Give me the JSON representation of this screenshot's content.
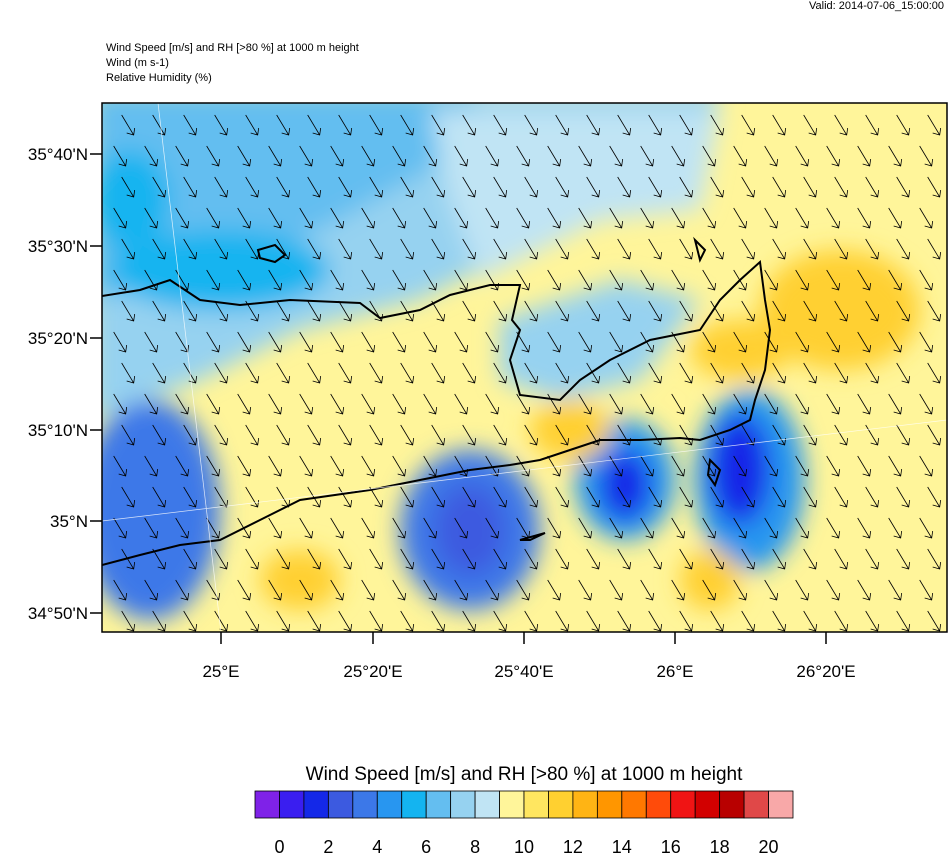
{
  "header": {
    "valid": "Valid: 2014-07-06_15:00:00",
    "lines": [
      "Wind Speed [m/s] and RH [>80 %] at 1000 m height",
      "Wind   (m s-1)",
      "Relative Humidity   (%)"
    ]
  },
  "map": {
    "lat_labels": [
      "35°40'N",
      "35°30'N",
      "35°20'N",
      "35°10'N",
      "35°N",
      "34°50'N"
    ],
    "lon_labels": [
      "25°E",
      "25°20'E",
      "25°40'E",
      "26°E",
      "26°20'E"
    ]
  },
  "colorbar": {
    "title": "Wind Speed [m/s] and RH [>80 %] at 1000 m height",
    "colors": [
      "#7f22e8",
      "#3a1ef0",
      "#1428e8",
      "#3c5ae0",
      "#3c78e8",
      "#2896f0",
      "#14b4f0",
      "#64bef0",
      "#96d2f0",
      "#c0e4f4",
      "#fff59a",
      "#ffe660",
      "#ffd030",
      "#ffb414",
      "#ff9600",
      "#ff7800",
      "#ff4b0a",
      "#f01414",
      "#d20000",
      "#b80000",
      "#e04848",
      "#f8a8a8"
    ],
    "labels": [
      0,
      2,
      4,
      6,
      8,
      10,
      12,
      14,
      16,
      18,
      20
    ]
  }
}
